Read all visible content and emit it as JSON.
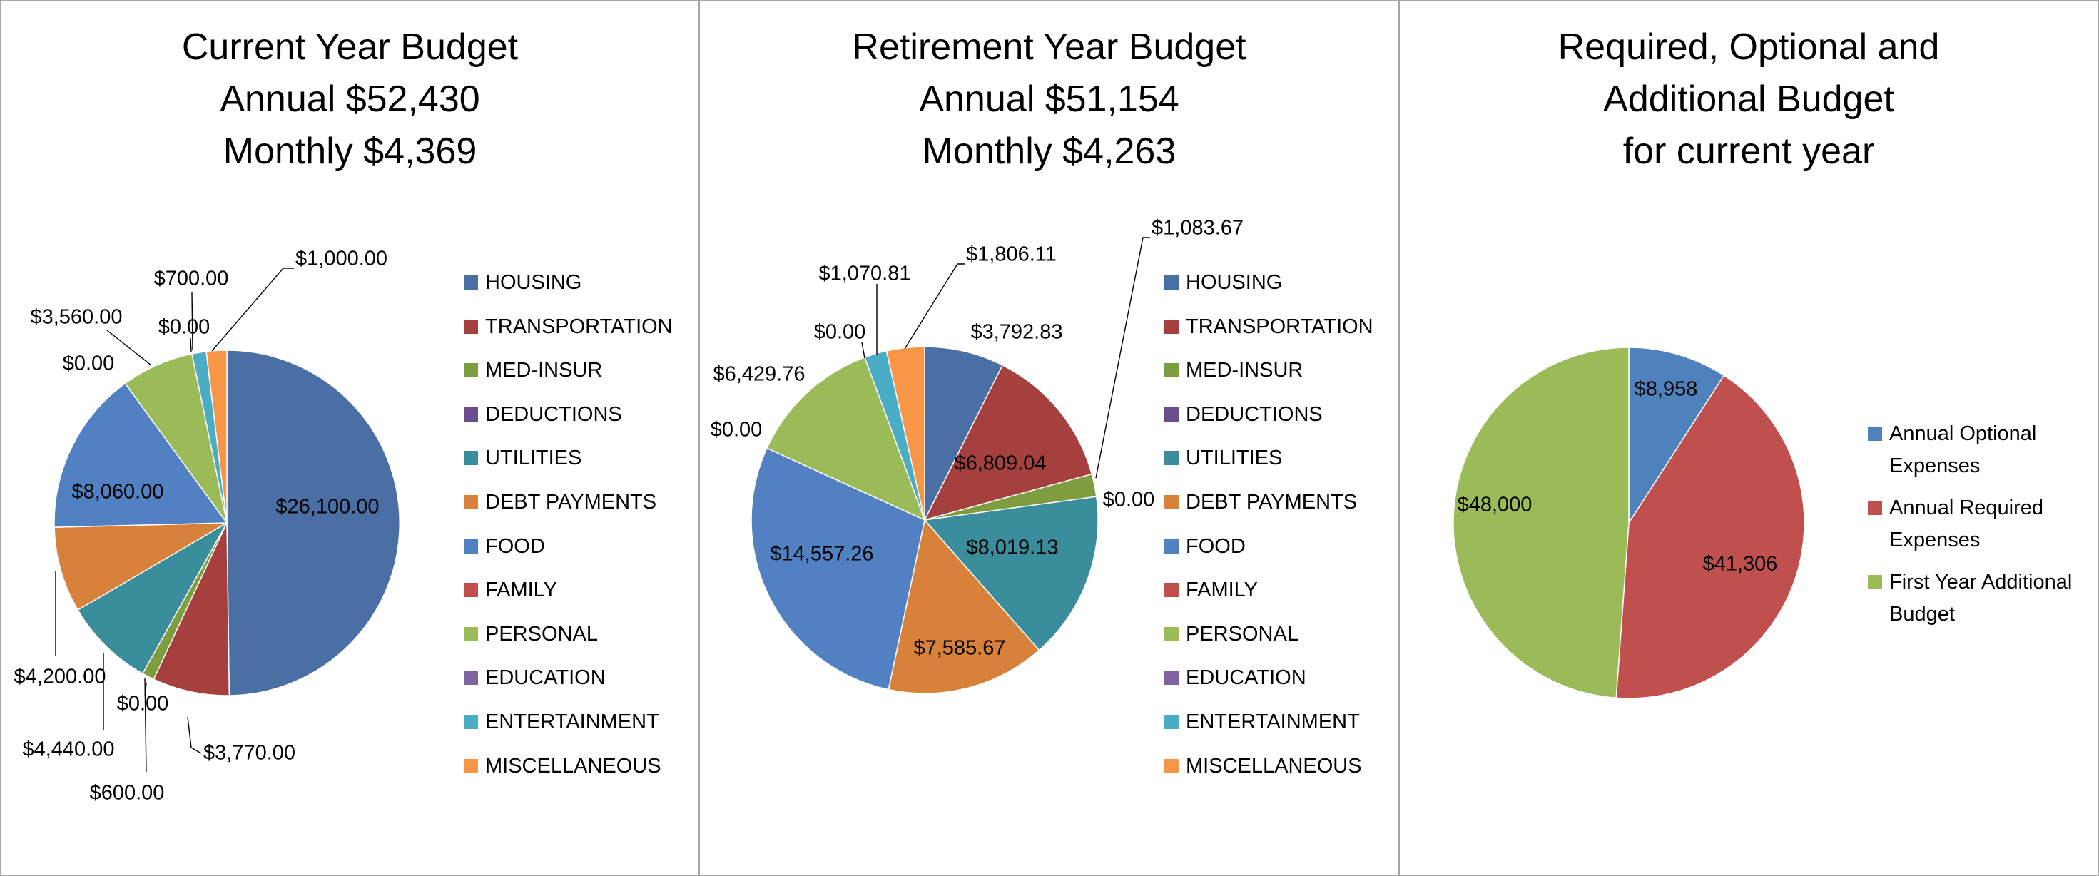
{
  "chart_data": [
    {
      "type": "pie",
      "title_lines": [
        "Current Year Budget",
        "Annual $52,430",
        "Monthly $4,369"
      ],
      "legend_position": "right",
      "categories": [
        "HOUSING",
        "TRANSPORTATION",
        "MED-INSUR",
        "DEDUCTIONS",
        "UTILITIES",
        "DEBT PAYMENTS",
        "FOOD",
        "FAMILY",
        "PERSONAL",
        "EDUCATION",
        "ENTERTAINMENT",
        "MISCELLANEOUS"
      ],
      "values": [
        26100,
        3770,
        600,
        0,
        4440,
        4200,
        8060,
        0,
        3560,
        0,
        700,
        1000
      ],
      "labels": [
        "$26,100.00",
        "$3,770.00",
        "$600.00",
        "$0.00",
        "$4,440.00",
        "$4,200.00",
        "$8,060.00",
        "$0.00",
        "$3,560.00",
        "$0.00",
        "$700.00",
        "$1,000.00"
      ],
      "colors": [
        "#4A6FA5",
        "#A6403E",
        "#7D9D3F",
        "#6A4F8F",
        "#3A8E9C",
        "#D8813A",
        "#5281C3",
        "#C0504D",
        "#9BBB59",
        "#8064A2",
        "#4BACC6",
        "#F79646"
      ]
    },
    {
      "type": "pie",
      "title_lines": [
        "Retirement Year Budget",
        "Annual $51,154",
        "Monthly $4,263"
      ],
      "legend_position": "right",
      "categories": [
        "HOUSING",
        "TRANSPORTATION",
        "MED-INSUR",
        "DEDUCTIONS",
        "UTILITIES",
        "DEBT PAYMENTS",
        "FOOD",
        "FAMILY",
        "PERSONAL",
        "EDUCATION",
        "ENTERTAINMENT",
        "MISCELLANEOUS"
      ],
      "values": [
        3792.83,
        6809.04,
        1083.67,
        0,
        8019.13,
        7585.67,
        14557.26,
        0,
        6429.76,
        0,
        1070.81,
        1806.11
      ],
      "labels": [
        "$3,792.83",
        "$6,809.04",
        "$1,083.67",
        "$0.00",
        "$8,019.13",
        "$7,585.67",
        "$14,557.26",
        "$0.00",
        "$6,429.76",
        "$0.00",
        "$1,070.81",
        "$1,806.11"
      ],
      "colors": [
        "#4A6FA5",
        "#A6403E",
        "#7D9D3F",
        "#6A4F8F",
        "#3A8E9C",
        "#D8813A",
        "#5281C3",
        "#C0504D",
        "#9BBB59",
        "#8064A2",
        "#4BACC6",
        "#F79646"
      ]
    },
    {
      "type": "pie",
      "title_lines": [
        "Required, Optional and",
        "Additional Budget",
        "for current year"
      ],
      "legend_position": "right",
      "categories": [
        "Annual Optional Expenses",
        "Annual Required Expenses",
        "First Year Additional Budget"
      ],
      "values": [
        8958,
        41306,
        48000
      ],
      "labels": [
        "$8,958",
        "$41,306",
        "$48,000"
      ],
      "colors": [
        "#4F81BD",
        "#C0504D",
        "#9BBB59"
      ]
    }
  ]
}
